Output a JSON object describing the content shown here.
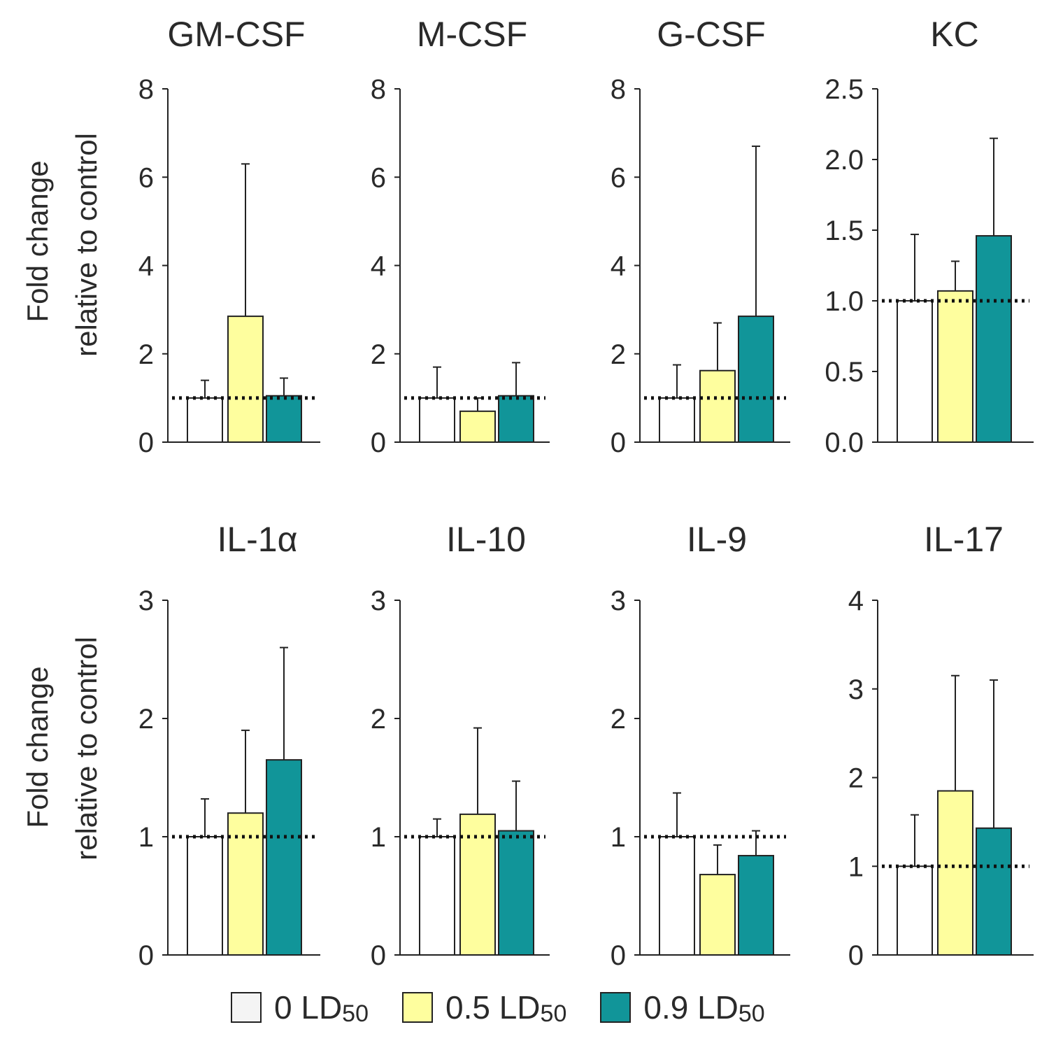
{
  "chart_data": {
    "type": "bar",
    "ylabel_line1": "Fold change",
    "ylabel_line2": "relative to control",
    "reference_line": 1,
    "series": [
      {
        "name": "0 LD50",
        "label_main": "0 LD",
        "label_sub": "50",
        "color": "#ffffff"
      },
      {
        "name": "0.5 LD50",
        "label_main": "0.5 LD",
        "label_sub": "50",
        "color": "#fefe9e"
      },
      {
        "name": "0.9 LD50",
        "label_main": "0.9 LD",
        "label_sub": "50",
        "color": "#119599"
      }
    ],
    "panels": [
      {
        "title": "GM-CSF",
        "ylim": [
          0,
          8
        ],
        "ticks": [
          "0",
          "2",
          "4",
          "6",
          "8"
        ],
        "values": [
          1.0,
          2.85,
          1.05
        ],
        "errors": [
          1.4,
          6.3,
          1.45
        ]
      },
      {
        "title": "M-CSF",
        "ylim": [
          0,
          8
        ],
        "ticks": [
          "0",
          "2",
          "4",
          "6",
          "8"
        ],
        "values": [
          1.0,
          0.7,
          1.05
        ],
        "errors": [
          1.7,
          1.0,
          1.8
        ]
      },
      {
        "title": "G-CSF",
        "ylim": [
          0,
          8
        ],
        "ticks": [
          "0",
          "2",
          "4",
          "6",
          "8"
        ],
        "values": [
          1.0,
          1.62,
          2.85
        ],
        "errors": [
          1.75,
          2.7,
          6.7
        ]
      },
      {
        "title": "KC",
        "ylim": [
          0,
          2.5
        ],
        "ticks": [
          "0.0",
          "0.5",
          "1.0",
          "1.5",
          "2.0",
          "2.5"
        ],
        "values": [
          1.0,
          1.07,
          1.46
        ],
        "errors": [
          1.47,
          1.28,
          2.15
        ]
      },
      {
        "title": "IL-1α",
        "ylim": [
          0,
          3
        ],
        "ticks": [
          "0",
          "1",
          "2",
          "3"
        ],
        "values": [
          1.0,
          1.2,
          1.65
        ],
        "errors": [
          1.32,
          1.9,
          2.6
        ]
      },
      {
        "title": "IL-10",
        "ylim": [
          0,
          3
        ],
        "ticks": [
          "0",
          "1",
          "2",
          "3"
        ],
        "values": [
          1.0,
          1.19,
          1.05
        ],
        "errors": [
          1.15,
          1.92,
          1.47
        ]
      },
      {
        "title": "IL-9",
        "ylim": [
          0,
          3
        ],
        "ticks": [
          "0",
          "1",
          "2",
          "3"
        ],
        "values": [
          1.0,
          0.68,
          0.84
        ],
        "errors": [
          1.37,
          0.93,
          1.05
        ]
      },
      {
        "title": "IL-17",
        "ylim": [
          0,
          4
        ],
        "ticks": [
          "0",
          "1",
          "2",
          "3",
          "4"
        ],
        "values": [
          1.0,
          1.85,
          1.43
        ],
        "errors": [
          1.58,
          3.15,
          3.1
        ]
      }
    ]
  }
}
